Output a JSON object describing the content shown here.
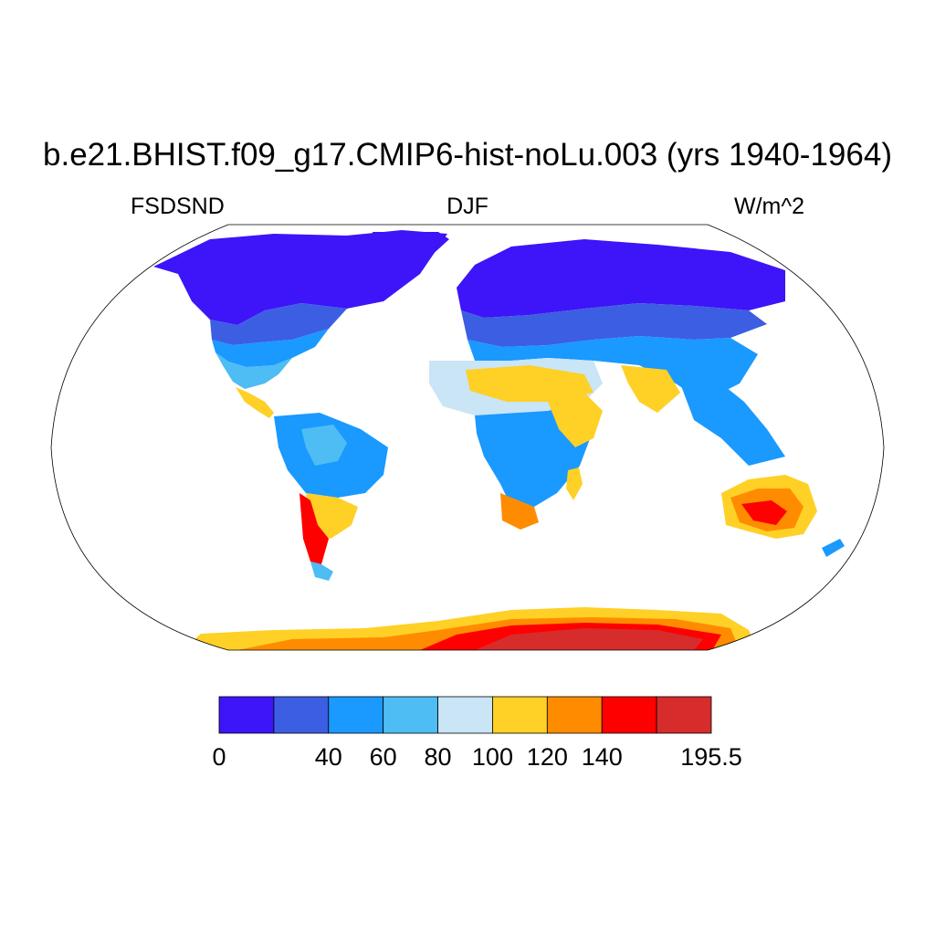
{
  "title": "b.e21.BHIST.f09_g17.CMIP6-hist-noLu.003 (yrs 1940-1964)",
  "left_label": "FSDSND",
  "center_label": "DJF",
  "right_label": "W/m^2",
  "colorbar": {
    "colors": [
      "#3e14f8",
      "#3c5ee2",
      "#1a99ff",
      "#4dbdf3",
      "#c9e5f6",
      "#ffd025",
      "#ff8c00",
      "#ff0000",
      "#d62c2c"
    ],
    "labels": [
      "0",
      "40",
      "60",
      "80",
      "100",
      "120",
      "140",
      "195.5"
    ],
    "label_box_index": [
      0,
      2,
      3,
      4,
      5,
      6,
      7,
      9
    ]
  },
  "map": {
    "projection": "robinson",
    "ocean_color": "#ffffff",
    "coastline_color": "#000000"
  }
}
